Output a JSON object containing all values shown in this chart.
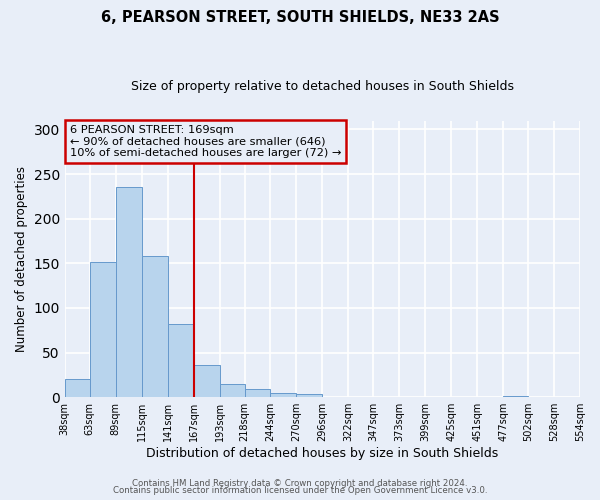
{
  "title": "6, PEARSON STREET, SOUTH SHIELDS, NE33 2AS",
  "subtitle": "Size of property relative to detached houses in South Shields",
  "xlabel": "Distribution of detached houses by size in South Shields",
  "ylabel": "Number of detached properties",
  "bar_values": [
    20,
    152,
    235,
    158,
    82,
    36,
    15,
    9,
    5,
    4,
    0,
    0,
    0,
    0,
    0,
    0,
    0,
    1,
    0,
    0
  ],
  "bin_edges": [
    38,
    63,
    89,
    115,
    141,
    167,
    193,
    218,
    244,
    270,
    296,
    322,
    347,
    373,
    399,
    425,
    451,
    477,
    502,
    528,
    554
  ],
  "tick_labels": [
    "38sqm",
    "63sqm",
    "89sqm",
    "115sqm",
    "141sqm",
    "167sqm",
    "193sqm",
    "218sqm",
    "244sqm",
    "270sqm",
    "296sqm",
    "322sqm",
    "347sqm",
    "373sqm",
    "399sqm",
    "425sqm",
    "451sqm",
    "477sqm",
    "502sqm",
    "528sqm",
    "554sqm"
  ],
  "bar_color": "#b8d4ed",
  "bar_edge_color": "#6699cc",
  "vline_x": 167,
  "vline_color": "#cc0000",
  "annotation_line1": "6 PEARSON STREET: 169sqm",
  "annotation_line2": "← 90% of detached houses are smaller (646)",
  "annotation_line3": "10% of semi-detached houses are larger (72) →",
  "annotation_box_color": "#cc0000",
  "ylim": [
    0,
    310
  ],
  "yticks": [
    0,
    50,
    100,
    150,
    200,
    250,
    300
  ],
  "footer1": "Contains HM Land Registry data © Crown copyright and database right 2024.",
  "footer2": "Contains public sector information licensed under the Open Government Licence v3.0.",
  "background_color": "#e8eef8",
  "grid_color": "#ffffff"
}
